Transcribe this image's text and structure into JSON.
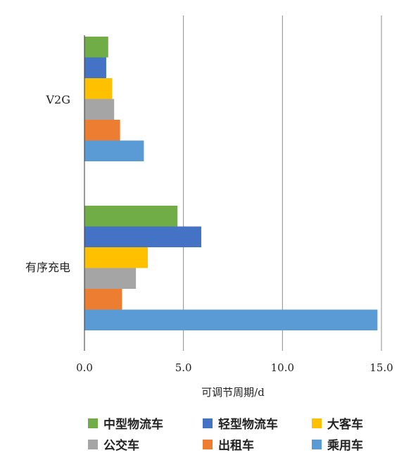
{
  "chart_data": {
    "type": "bar",
    "orientation": "horizontal",
    "categories": [
      "V2G",
      "有序充电"
    ],
    "series": [
      {
        "name": "中型物流车",
        "color": "#70AD47",
        "values": [
          1.2,
          4.7
        ]
      },
      {
        "name": "轻型物流车",
        "color": "#4472C4",
        "values": [
          1.1,
          5.9
        ]
      },
      {
        "name": "大客车",
        "color": "#FFC000",
        "values": [
          1.4,
          3.2
        ]
      },
      {
        "name": "公交车",
        "color": "#A5A5A5",
        "values": [
          1.5,
          2.6
        ]
      },
      {
        "name": "出租车",
        "color": "#ED7D31",
        "values": [
          1.8,
          1.9
        ]
      },
      {
        "name": "乘用车",
        "color": "#5B9BD5",
        "values": [
          3.0,
          14.8
        ]
      }
    ],
    "xlabel": "可调节周期/d",
    "xlim": [
      0,
      15
    ],
    "xticks": [
      "0.0",
      "5.0",
      "10.0",
      "15.0"
    ],
    "grid": "vertical",
    "legend_position": "bottom"
  }
}
